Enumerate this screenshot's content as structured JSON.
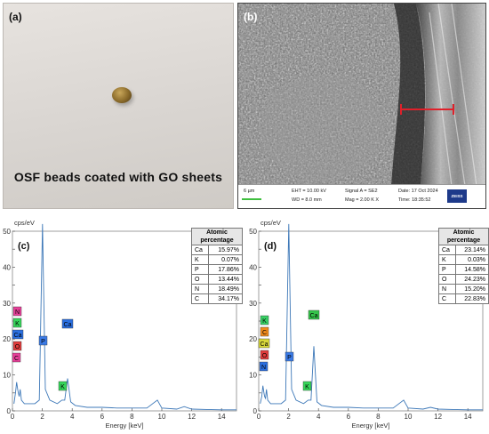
{
  "panel_a": {
    "label": "(a)",
    "caption": "OSF beads coated with GO sheets"
  },
  "panel_b": {
    "label": "(b)",
    "info": {
      "scale": "6 µm",
      "eht": "EHT = 10.00 kV",
      "wd": "WD = 8.0 mm",
      "signal": "Signal A = SE2",
      "mag": "Mag = 2.00 K X",
      "date": "Date: 17 Oct 2024",
      "time": "Time: 18:35:52",
      "brand": "ZEISS"
    },
    "marker_color": "#e0202a"
  },
  "panel_c": {
    "label": "(c)",
    "y_unit": "cps/eV",
    "x_title": "Energy [keV]",
    "table_header": "Atomic percentage",
    "table": [
      [
        "Ca",
        "15.97%"
      ],
      [
        "K",
        "0.07%"
      ],
      [
        "P",
        "17.86%"
      ],
      [
        "O",
        "13.44%"
      ],
      [
        "N",
        "18.49%"
      ],
      [
        "C",
        "34.17%"
      ]
    ],
    "badges": [
      "N",
      "K",
      "Ca",
      "O",
      "C",
      "P",
      "Ca",
      "K"
    ]
  },
  "panel_d": {
    "label": "(d)",
    "y_unit": "cps/eV",
    "x_title": "Energy [keV]",
    "table_header": "Atomic percentage",
    "table": [
      [
        "Ca",
        "23.14%"
      ],
      [
        "K",
        "0.03%"
      ],
      [
        "P",
        "14.58%"
      ],
      [
        "O",
        "24.23%"
      ],
      [
        "N",
        "15.20%"
      ],
      [
        "C",
        "22.83%"
      ]
    ],
    "badges": [
      "K",
      "C",
      "Ca",
      "O",
      "N",
      "P",
      "K",
      "Ca"
    ]
  },
  "colors": {
    "spectrum": "#3d78b8",
    "N": "#e8409a",
    "K": "#36d65a",
    "Ca": "#2a6fe0",
    "O": "#e23c3c",
    "C": "#e8409a",
    "P": "#3a7ae6",
    "Ca_d": "#35c44a",
    "K_d": "#38d064",
    "C_d": "#f08a1a"
  },
  "chart_data": [
    {
      "type": "line",
      "title": "",
      "xlabel": "Energy [keV]",
      "ylabel": "cps/eV",
      "xlim": [
        0,
        15
      ],
      "ylim": [
        0,
        50
      ],
      "x_ticks": [
        0,
        2,
        4,
        6,
        8,
        10,
        12,
        14
      ],
      "y_ticks": [
        0,
        5,
        10,
        15,
        20,
        25,
        30,
        35,
        40,
        45,
        50
      ],
      "series": [
        {
          "x": [
            0.1,
            0.2,
            0.28,
            0.35,
            0.39,
            0.45,
            0.52,
            0.6,
            0.8,
            1.0,
            1.5,
            1.8,
            2.01,
            2.2,
            2.5,
            3.0,
            3.31,
            3.5,
            3.69,
            3.9,
            4.2,
            5.0,
            6.0,
            7.0,
            8.0,
            9.0,
            9.7,
            10.0,
            11.0,
            11.5,
            12.0,
            13.0,
            14.0,
            15.0
          ],
          "y": [
            2,
            5,
            8,
            6,
            5,
            4,
            6,
            3,
            2,
            2,
            2,
            3,
            52,
            6,
            3,
            2,
            3,
            3,
            9,
            2.5,
            1.5,
            1,
            1,
            0.8,
            0.8,
            0.8,
            3,
            0.8,
            0.5,
            1.2,
            0.5,
            0.4,
            0.3,
            0.3
          ]
        }
      ]
    },
    {
      "type": "line",
      "title": "",
      "xlabel": "Energy [keV]",
      "ylabel": "cps/eV",
      "xlim": [
        0,
        15
      ],
      "ylim": [
        0,
        50
      ],
      "x_ticks": [
        0,
        2,
        4,
        6,
        8,
        10,
        12,
        14
      ],
      "y_ticks": [
        0,
        5,
        10,
        15,
        20,
        25,
        30,
        35,
        40,
        45,
        50
      ],
      "series": [
        {
          "x": [
            0.1,
            0.2,
            0.28,
            0.35,
            0.39,
            0.45,
            0.52,
            0.6,
            0.8,
            1.0,
            1.5,
            1.8,
            2.01,
            2.2,
            2.5,
            3.0,
            3.31,
            3.5,
            3.69,
            3.9,
            4.2,
            5.0,
            6.0,
            7.0,
            8.0,
            9.0,
            9.7,
            10.0,
            11.0,
            11.5,
            12.0,
            13.0,
            14.0,
            15.0
          ],
          "y": [
            2,
            4,
            7,
            5,
            4,
            3.5,
            6,
            3,
            2,
            2,
            2,
            3,
            52,
            6,
            3,
            2,
            3,
            3,
            18,
            2.5,
            1.5,
            1,
            1,
            0.8,
            0.8,
            0.8,
            3,
            0.8,
            0.5,
            1,
            0.5,
            0.4,
            0.3,
            0.3
          ]
        }
      ]
    }
  ]
}
